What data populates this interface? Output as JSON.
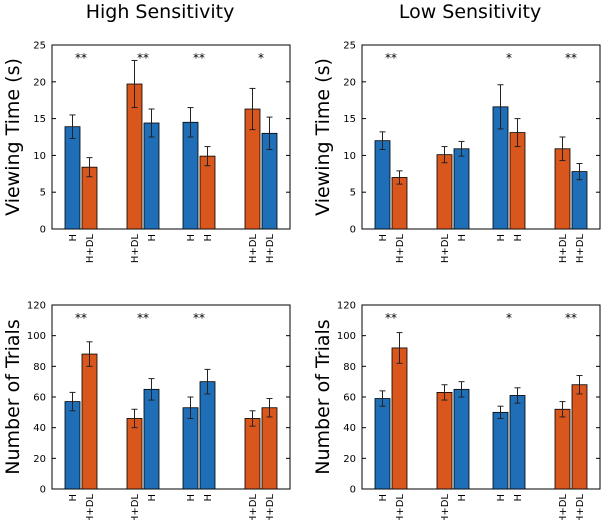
{
  "colors": {
    "blue": "#1f6fb8",
    "orange": "#d9571c",
    "axis": "#000000",
    "errorbar": "#222222"
  },
  "column_titles": [
    "High Sensitivity",
    "Low Sensitivity"
  ],
  "chart_data": [
    {
      "type": "bar",
      "panel": "high-viewing",
      "column_title": "High Sensitivity",
      "ylabel": "Viewing Time (s)",
      "ylim": [
        0,
        25
      ],
      "yticks": [
        0,
        5,
        10,
        15,
        20,
        25
      ],
      "grid": false,
      "groups": [
        {
          "significance": "**",
          "bars": [
            {
              "label": "H",
              "color": "blue",
              "value": 13.9,
              "error": 1.6
            },
            {
              "label": "H+DL",
              "color": "orange",
              "value": 8.4,
              "error": 1.3
            }
          ]
        },
        {
          "significance": "**",
          "bars": [
            {
              "label": "H+DL",
              "color": "orange",
              "value": 19.7,
              "error": 3.2
            },
            {
              "label": "H",
              "color": "blue",
              "value": 14.4,
              "error": 1.9
            }
          ]
        },
        {
          "significance": "**",
          "bars": [
            {
              "label": "H",
              "color": "blue",
              "value": 14.5,
              "error": 2.0
            },
            {
              "label": "H",
              "color": "orange",
              "value": 9.9,
              "error": 1.3
            }
          ]
        },
        {
          "significance": "*",
          "bars": [
            {
              "label": "H+DL",
              "color": "orange",
              "value": 16.3,
              "error": 2.8
            },
            {
              "label": "H+DL",
              "color": "blue",
              "value": 13.0,
              "error": 2.2
            }
          ]
        }
      ]
    },
    {
      "type": "bar",
      "panel": "low-viewing",
      "column_title": "Low Sensitivity",
      "ylabel": "Viewing Time (s)",
      "ylim": [
        0,
        25
      ],
      "yticks": [
        0,
        5,
        10,
        15,
        20,
        25
      ],
      "grid": false,
      "groups": [
        {
          "significance": "**",
          "bars": [
            {
              "label": "H",
              "color": "blue",
              "value": 12.0,
              "error": 1.2
            },
            {
              "label": "H+DL",
              "color": "orange",
              "value": 7.0,
              "error": 0.9
            }
          ]
        },
        {
          "significance": "",
          "bars": [
            {
              "label": "H+DL",
              "color": "orange",
              "value": 10.1,
              "error": 1.1
            },
            {
              "label": "H",
              "color": "blue",
              "value": 10.9,
              "error": 1.0
            }
          ]
        },
        {
          "significance": "*",
          "bars": [
            {
              "label": "H",
              "color": "blue",
              "value": 16.6,
              "error": 3.0
            },
            {
              "label": "H",
              "color": "orange",
              "value": 13.1,
              "error": 1.9
            }
          ]
        },
        {
          "significance": "**",
          "bars": [
            {
              "label": "H+DL",
              "color": "orange",
              "value": 10.9,
              "error": 1.6
            },
            {
              "label": "H+DL",
              "color": "blue",
              "value": 7.8,
              "error": 1.1
            }
          ]
        }
      ]
    },
    {
      "type": "bar",
      "panel": "high-trials",
      "column_title": "High Sensitivity",
      "ylabel": "Number of Trials",
      "ylim": [
        0,
        120
      ],
      "yticks": [
        0,
        20,
        40,
        60,
        80,
        100,
        120
      ],
      "grid": false,
      "groups": [
        {
          "significance": "**",
          "bars": [
            {
              "label": "H",
              "color": "blue",
              "value": 57,
              "error": 6
            },
            {
              "label": "H+DL",
              "color": "orange",
              "value": 88,
              "error": 8
            }
          ]
        },
        {
          "significance": "**",
          "bars": [
            {
              "label": "H+DL",
              "color": "orange",
              "value": 46,
              "error": 6
            },
            {
              "label": "H",
              "color": "blue",
              "value": 65,
              "error": 7
            }
          ]
        },
        {
          "significance": "**",
          "bars": [
            {
              "label": "H",
              "color": "blue",
              "value": 53,
              "error": 7
            },
            {
              "label": "H",
              "color": "blue",
              "value": 70,
              "error": 8
            }
          ]
        },
        {
          "significance": "",
          "bars": [
            {
              "label": "H+DL",
              "color": "orange",
              "value": 46,
              "error": 5
            },
            {
              "label": "H+DL",
              "color": "orange",
              "value": 53,
              "error": 6
            }
          ]
        }
      ]
    },
    {
      "type": "bar",
      "panel": "low-trials",
      "column_title": "Low Sensitivity",
      "ylabel": "Number of Trials",
      "ylim": [
        0,
        120
      ],
      "yticks": [
        0,
        20,
        40,
        60,
        80,
        100,
        120
      ],
      "grid": false,
      "groups": [
        {
          "significance": "**",
          "bars": [
            {
              "label": "H",
              "color": "blue",
              "value": 59,
              "error": 5
            },
            {
              "label": "H+DL",
              "color": "orange",
              "value": 92,
              "error": 10
            }
          ]
        },
        {
          "significance": "",
          "bars": [
            {
              "label": "H+DL",
              "color": "orange",
              "value": 63,
              "error": 5
            },
            {
              "label": "H",
              "color": "blue",
              "value": 65,
              "error": 5
            }
          ]
        },
        {
          "significance": "*",
          "bars": [
            {
              "label": "H",
              "color": "blue",
              "value": 50,
              "error": 4
            },
            {
              "label": "H",
              "color": "blue",
              "value": 61,
              "error": 5
            }
          ]
        },
        {
          "significance": "**",
          "bars": [
            {
              "label": "H+DL",
              "color": "orange",
              "value": 52,
              "error": 5
            },
            {
              "label": "H+DL",
              "color": "orange",
              "value": 68,
              "error": 6
            }
          ]
        }
      ]
    }
  ]
}
